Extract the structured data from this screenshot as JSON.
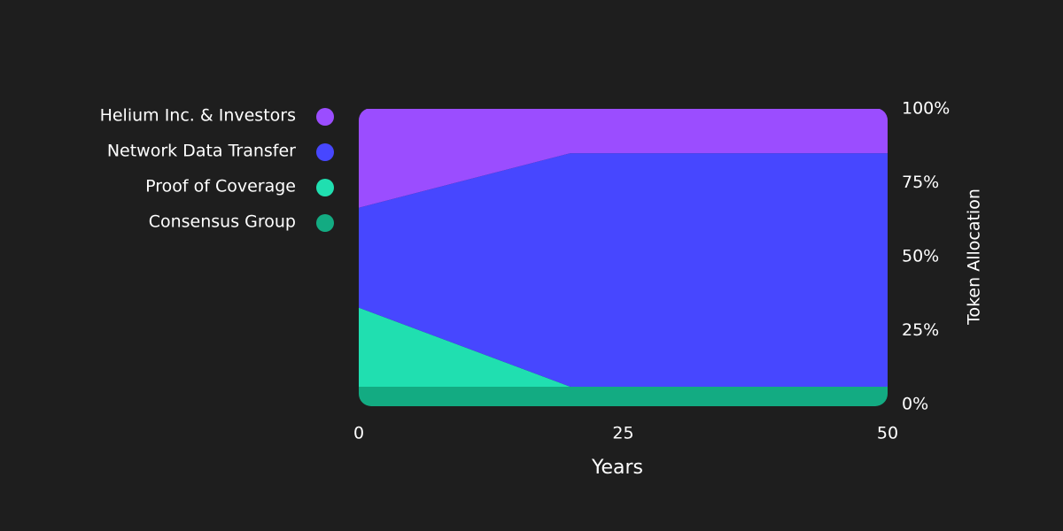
{
  "chart_data": {
    "type": "stacked-area",
    "x": [
      0,
      20,
      50
    ],
    "series": [
      {
        "name": "Consensus Group",
        "color": "#13ab82",
        "values": [
          6,
          6,
          6
        ]
      },
      {
        "name": "Proof of Coverage",
        "color": "#20dfb0",
        "values": [
          29,
          0,
          0
        ]
      },
      {
        "name": "Network Data Transfer",
        "color": "#4747ff",
        "values": [
          30,
          79,
          79
        ]
      },
      {
        "name": "Helium Inc. & Investors",
        "color": "#9b4dff",
        "values": [
          35,
          15,
          15
        ]
      }
    ],
    "x_label": "Years",
    "y_label": "Token Allocation",
    "xlim": [
      0,
      50
    ],
    "xticks": [
      0,
      25,
      50
    ],
    "ylim": [
      0,
      100
    ],
    "yticks": [
      {
        "value": 0,
        "label": "0%"
      },
      {
        "value": 25,
        "label": "25%"
      },
      {
        "value": 50,
        "label": "50%"
      },
      {
        "value": 75,
        "label": "75%"
      },
      {
        "value": 100,
        "label": "100%"
      }
    ]
  }
}
